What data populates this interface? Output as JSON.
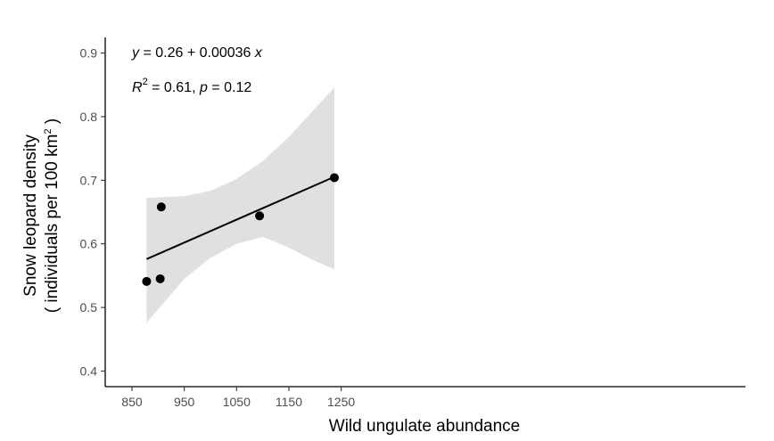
{
  "chart_data": {
    "type": "scatter",
    "x_axis": {
      "label": "Wild ungulate abundance",
      "range": [
        850,
        1250
      ],
      "ticks": [
        850,
        950,
        1050,
        1150,
        1250
      ]
    },
    "y_axis": {
      "label_line1": "Snow leopard density",
      "label_line2_prefix": "( individuals per 100 km",
      "label_line2_sup": "2",
      "label_line2_suffix": " )",
      "range": [
        0.4,
        0.9
      ],
      "ticks": [
        "0.4",
        "0.5",
        "0.6",
        "0.7",
        "0.8",
        "0.9"
      ]
    },
    "points": [
      {
        "x": 878,
        "y": 0.541
      },
      {
        "x": 904,
        "y": 0.545
      },
      {
        "x": 906,
        "y": 0.658
      },
      {
        "x": 1094,
        "y": 0.644
      },
      {
        "x": 1237,
        "y": 0.704
      }
    ],
    "regression": {
      "intercept": 0.26,
      "slope": 0.00036,
      "x_range": [
        878,
        1237
      ],
      "confidence_band": [
        {
          "x": 878,
          "lower": 0.476,
          "upper": 0.672
        },
        {
          "x": 950,
          "lower": 0.545,
          "upper": 0.675
        },
        {
          "x": 1000,
          "lower": 0.578,
          "upper": 0.683
        },
        {
          "x": 1050,
          "lower": 0.6,
          "upper": 0.702
        },
        {
          "x": 1100,
          "lower": 0.611,
          "upper": 0.73
        },
        {
          "x": 1150,
          "lower": 0.594,
          "upper": 0.768
        },
        {
          "x": 1200,
          "lower": 0.573,
          "upper": 0.813
        },
        {
          "x": 1237,
          "lower": 0.56,
          "upper": 0.846
        }
      ]
    },
    "annotation": {
      "eq_y": "y",
      "eq_text": " = 0.26 + 0.00036 ",
      "eq_x": "x",
      "r2_r": "R",
      "r2_sup": "2",
      "r2_text": " = 0.61, ",
      "r2_p": "p",
      "r2_ptext": " = 0.12"
    },
    "colors": {
      "band": "#e0e0e0",
      "line": "#000000",
      "points": "#000000",
      "axis": "#000000"
    },
    "grid": false,
    "legend": "none"
  }
}
